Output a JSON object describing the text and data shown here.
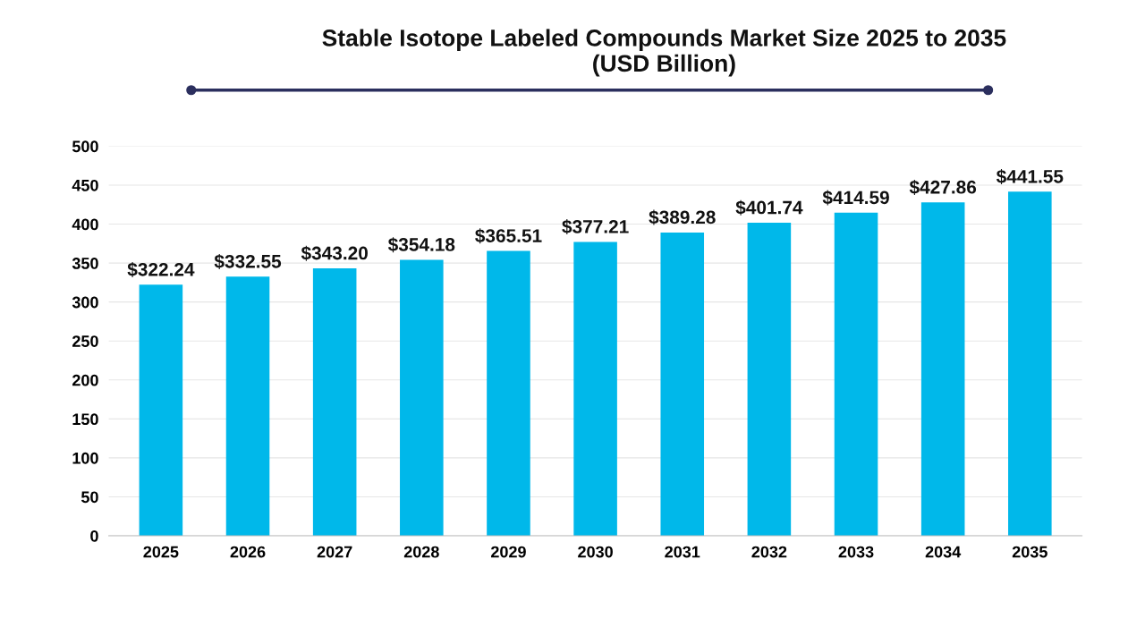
{
  "chart_data": {
    "type": "bar",
    "title": "Stable Isotope Labeled Compounds Market Size 2025 to 2035\n(USD Billion)",
    "categories": [
      "2025",
      "2026",
      "2027",
      "2028",
      "2029",
      "2030",
      "2031",
      "2032",
      "2033",
      "2034",
      "2035"
    ],
    "values": [
      322.24,
      332.55,
      343.2,
      354.18,
      365.51,
      377.21,
      389.28,
      401.74,
      414.59,
      427.86,
      441.55
    ],
    "value_labels": [
      "$322.24",
      "$332.55",
      "$343.20",
      "$354.18",
      "$365.51",
      "$377.21",
      "$389.28",
      "$401.74",
      "$414.59",
      "$427.86",
      "$441.55"
    ],
    "color": "#00b8ea",
    "ylim": [
      0,
      500
    ],
    "yticks": [
      0,
      50,
      100,
      150,
      200,
      250,
      300,
      350,
      400,
      450,
      500
    ],
    "grid": "y"
  }
}
